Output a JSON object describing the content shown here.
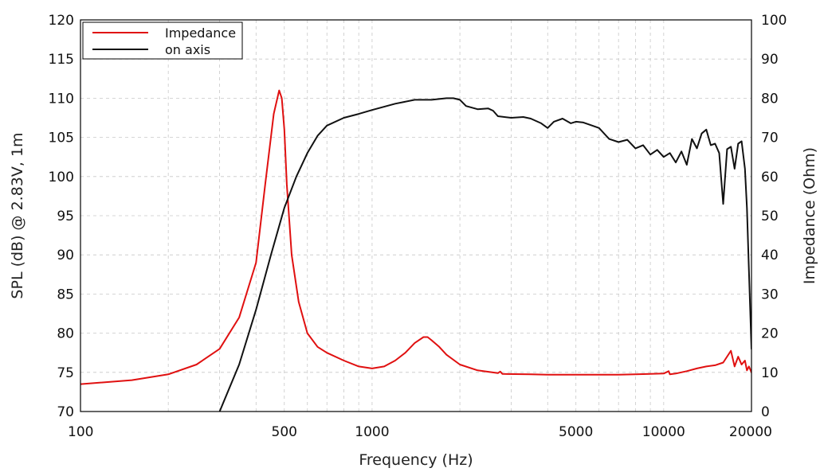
{
  "chart_data": {
    "type": "line",
    "x_scale": "log",
    "xlabel": "Frequency (Hz)",
    "ylabel": "SPL (dB) @ 2.83V, 1m",
    "y2label": "Impedance (Ohm)",
    "xlim": [
      100,
      20000
    ],
    "ylim": [
      70,
      120
    ],
    "y2lim": [
      0,
      100
    ],
    "x_ticks": [
      100,
      500,
      1000,
      5000,
      10000,
      20000
    ],
    "x_tick_labels": [
      "100",
      "500",
      "1000",
      "5000",
      "10000",
      "20000"
    ],
    "y_ticks": [
      70,
      75,
      80,
      85,
      90,
      95,
      100,
      105,
      110,
      115,
      120
    ],
    "y_tick_labels": [
      "70",
      "75",
      "80",
      "85",
      "90",
      "95",
      "100",
      "105",
      "110",
      "115",
      "120"
    ],
    "y2_ticks": [
      0,
      10,
      20,
      30,
      40,
      50,
      60,
      70,
      80,
      90,
      100
    ],
    "y2_tick_labels": [
      "0",
      "10",
      "20",
      "30",
      "40",
      "50",
      "60",
      "70",
      "80",
      "90",
      "100"
    ],
    "grid": true,
    "legend_position": "top-left",
    "series": [
      {
        "name": "Impedance",
        "axis": "right",
        "color": "#e01010",
        "x": [
          100,
          150,
          200,
          250,
          300,
          350,
          400,
          430,
          460,
          480,
          490,
          500,
          510,
          530,
          560,
          600,
          650,
          700,
          800,
          900,
          1000,
          1100,
          1200,
          1300,
          1400,
          1500,
          1550,
          1600,
          1700,
          1800,
          2000,
          2300,
          2700,
          2750,
          2800,
          3500,
          4000,
          5000,
          6000,
          7000,
          8000,
          9000,
          10000,
          10400,
          10500,
          11000,
          12000,
          13000,
          14000,
          15000,
          16000,
          17000,
          17500,
          18000,
          18500,
          19000,
          19300,
          19600,
          20000
        ],
        "y": [
          7,
          8,
          9.5,
          12,
          16,
          24,
          38,
          58,
          76,
          82,
          80,
          72,
          58,
          40,
          28,
          20,
          16.5,
          15,
          13,
          11.5,
          11,
          11.5,
          13,
          15,
          17.5,
          19,
          19,
          18.2,
          16.5,
          14.5,
          12,
          10.5,
          9.8,
          10.2,
          9.6,
          9.5,
          9.4,
          9.4,
          9.4,
          9.4,
          9.5,
          9.6,
          9.7,
          10.3,
          9.5,
          9.7,
          10.3,
          11,
          11.5,
          11.8,
          12.5,
          15.5,
          11.5,
          14,
          12,
          13,
          10.5,
          11.5,
          10
        ]
      },
      {
        "name": "on axis",
        "axis": "left",
        "color": "#111111",
        "x": [
          300,
          350,
          400,
          450,
          500,
          550,
          600,
          650,
          700,
          800,
          900,
          1000,
          1200,
          1400,
          1600,
          1800,
          1900,
          2000,
          2100,
          2300,
          2500,
          2600,
          2700,
          3000,
          3300,
          3500,
          3800,
          4000,
          4200,
          4500,
          4800,
          5000,
          5300,
          5600,
          6000,
          6500,
          7000,
          7500,
          8000,
          8500,
          9000,
          9500,
          10000,
          10500,
          11000,
          11500,
          12000,
          12500,
          13000,
          13500,
          14000,
          14500,
          15000,
          15500,
          16000,
          16500,
          17000,
          17500,
          18000,
          18500,
          19000,
          19300,
          19600,
          20000
        ],
        "y": [
          70,
          76,
          83,
          90,
          96,
          100,
          103,
          105.2,
          106.5,
          107.5,
          108,
          108.5,
          109.3,
          109.8,
          109.8,
          110,
          110,
          109.8,
          109,
          108.6,
          108.7,
          108.4,
          107.7,
          107.5,
          107.6,
          107.4,
          106.8,
          106.2,
          107,
          107.4,
          106.8,
          107,
          106.9,
          106.6,
          106.2,
          104.8,
          104.4,
          104.7,
          103.6,
          104,
          102.8,
          103.4,
          102.5,
          103,
          101.8,
          103.2,
          101.5,
          104.8,
          103.6,
          105.5,
          106,
          104,
          104.2,
          103,
          96.5,
          103.5,
          103.8,
          101,
          104.2,
          104.5,
          101,
          96,
          88,
          78
        ]
      }
    ]
  }
}
